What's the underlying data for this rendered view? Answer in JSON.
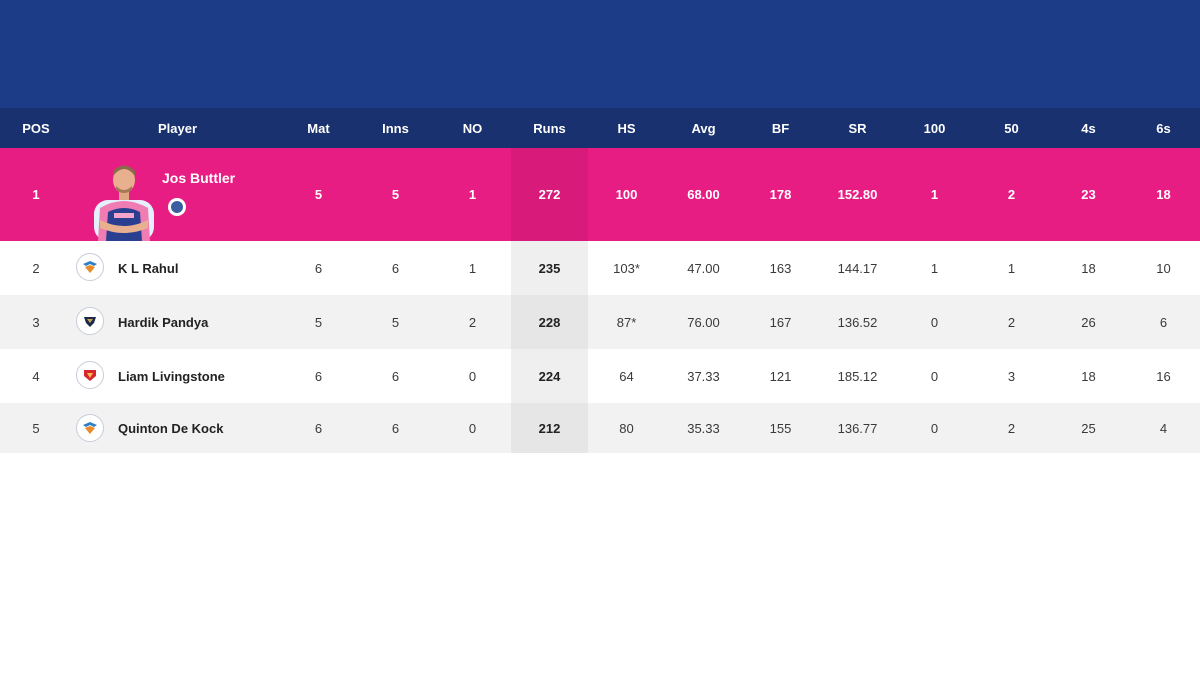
{
  "columns": [
    "POS",
    "Player",
    "Mat",
    "Inns",
    "NO",
    "Runs",
    "HS",
    "Avg",
    "BF",
    "SR",
    "100",
    "50",
    "4s",
    "6s"
  ],
  "colors": {
    "banner": "#1d3c87",
    "header": "#19316f",
    "leader": "#e81d84"
  },
  "rows": [
    {
      "pos": "1",
      "player": "Jos Buttler",
      "team_icon": "rajasthan-royals-badge-icon",
      "mat": "5",
      "inns": "5",
      "no": "1",
      "runs": "272",
      "hs": "100",
      "avg": "68.00",
      "bf": "178",
      "sr": "152.80",
      "hundreds": "1",
      "fifties": "2",
      "fours": "23",
      "sixes": "18"
    },
    {
      "pos": "2",
      "player": "K L Rahul",
      "team_icon": "lucknow-super-giants-logo-icon",
      "mat": "6",
      "inns": "6",
      "no": "1",
      "runs": "235",
      "hs": "103*",
      "avg": "47.00",
      "bf": "163",
      "sr": "144.17",
      "hundreds": "1",
      "fifties": "1",
      "fours": "18",
      "sixes": "10"
    },
    {
      "pos": "3",
      "player": "Hardik Pandya",
      "team_icon": "gujarat-titans-logo-icon",
      "mat": "5",
      "inns": "5",
      "no": "2",
      "runs": "228",
      "hs": "87*",
      "avg": "76.00",
      "bf": "167",
      "sr": "136.52",
      "hundreds": "0",
      "fifties": "2",
      "fours": "26",
      "sixes": "6"
    },
    {
      "pos": "4",
      "player": "Liam Livingstone",
      "team_icon": "punjab-kings-logo-icon",
      "mat": "6",
      "inns": "6",
      "no": "0",
      "runs": "224",
      "hs": "64",
      "avg": "37.33",
      "bf": "121",
      "sr": "185.12",
      "hundreds": "0",
      "fifties": "3",
      "fours": "18",
      "sixes": "16"
    },
    {
      "pos": "5",
      "player": "Quinton De Kock",
      "team_icon": "lucknow-super-giants-logo-icon",
      "mat": "6",
      "inns": "6",
      "no": "0",
      "runs": "212",
      "hs": "80",
      "avg": "35.33",
      "bf": "155",
      "sr": "136.77",
      "hundreds": "0",
      "fifties": "2",
      "fours": "25",
      "sixes": "4"
    }
  ]
}
